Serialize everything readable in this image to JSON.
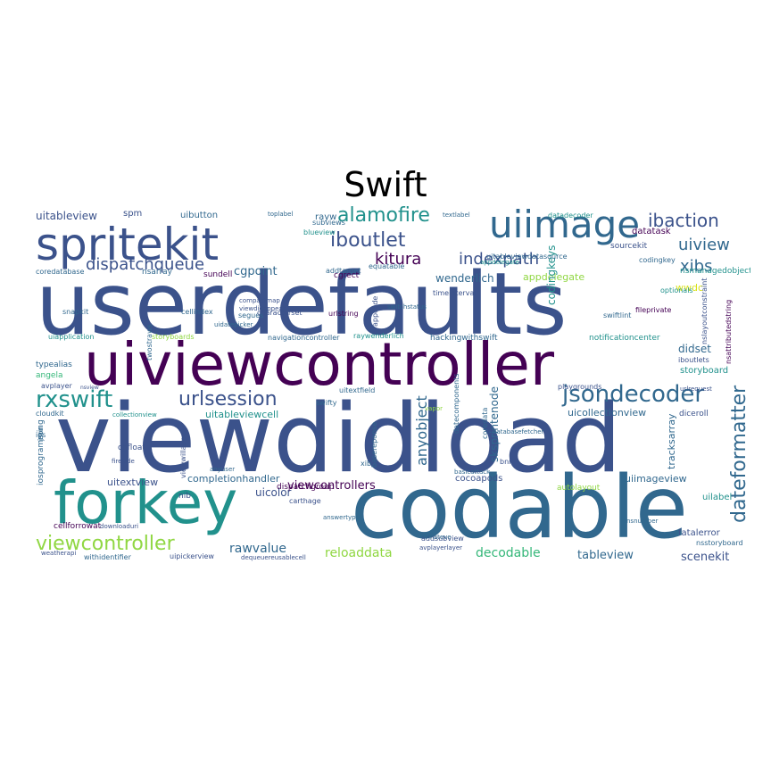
{
  "title": "Swift",
  "palette": {
    "dark_purple": "#440154",
    "indigo": "#3b528b",
    "blue": "#31688e",
    "teal": "#21918c",
    "green": "#35b779",
    "lime": "#90d743",
    "yellow": "#d8e219"
  },
  "words": [
    "userdefaults",
    "viewdidload",
    "codable",
    "uiviewcontroller",
    "forkey",
    "spritekit",
    "uiimage",
    "rxswift",
    "jsondecoder",
    "urlsession",
    "viewcontroller",
    "dateformatter",
    "alamofire",
    "iboutlet",
    "ibaction",
    "uiview",
    "dispatchqueue",
    "kitura",
    "indexpath",
    "xibs",
    "cgpoint",
    "uitableview",
    "spm",
    "uibutton",
    "rayw",
    "wenderlich",
    "appdelegate",
    "codingkeys",
    "datatask",
    "sourcekit",
    "codingkey",
    "nsmanagedobject",
    "coredatabase",
    "nsarray",
    "sundell",
    "addtarget",
    "cgrect",
    "wwdc",
    "optionals",
    "snapkit",
    "cellindex",
    "segues",
    "urlstring",
    "appcode",
    "timeinterval",
    "swiftlint",
    "fileprivate",
    "nslayoutconstraint",
    "nsattributedstring",
    "uiapplication",
    "storyboards",
    "uidatepicker",
    "navigationcontroller",
    "raywenderlich",
    "hackingwithswift",
    "notificationcenter",
    "didset",
    "iboutlets",
    "storyboard",
    "typealias",
    "angela",
    "twostraws",
    "avplayer",
    "nsview",
    "uitextfield",
    "datecomponents",
    "equatable",
    "vapor",
    "urlrequest",
    "uicollectionview",
    "diceroll",
    "cloudkit",
    "collectionview",
    "uitableviewcell",
    "swifty",
    "ios",
    "json",
    "iosprogramming",
    "anyobject",
    "sksprintenode",
    "basereponse",
    "coredata",
    "bnr",
    "uitextview",
    "completionhandler",
    "cocoapods",
    "basicattack",
    "autolayout",
    "uiimageview",
    "tracksarray",
    "cgfloat",
    "fireside",
    "anyuser",
    "viewwillappear",
    "uicolor",
    "carthage",
    "viewcontrollers",
    "uilabel",
    "nib",
    "cellforrowat",
    "downloaduri",
    "answertype",
    "addsubview",
    "fatalerror",
    "nsstoryboard",
    "weatherapi",
    "withidentifier",
    "uipickerview",
    "dequeuereusablecell",
    "rawvalue",
    "reloaddata",
    "decodable",
    "tableview",
    "scenekit",
    "xib",
    "ivinsteve",
    "avplayerlayer",
    "playgrounds",
    "textlabel",
    "toplabel",
    "subviews",
    "blueview",
    "compactmap",
    "viewdidappear",
    "dispatchgroup",
    "uitableviewdatasource",
    "databasefetcher",
    "appdelegate",
    "nsnumber",
    "switchstatus",
    "datadecoder",
    "characterset",
    "nsarray"
  ]
}
